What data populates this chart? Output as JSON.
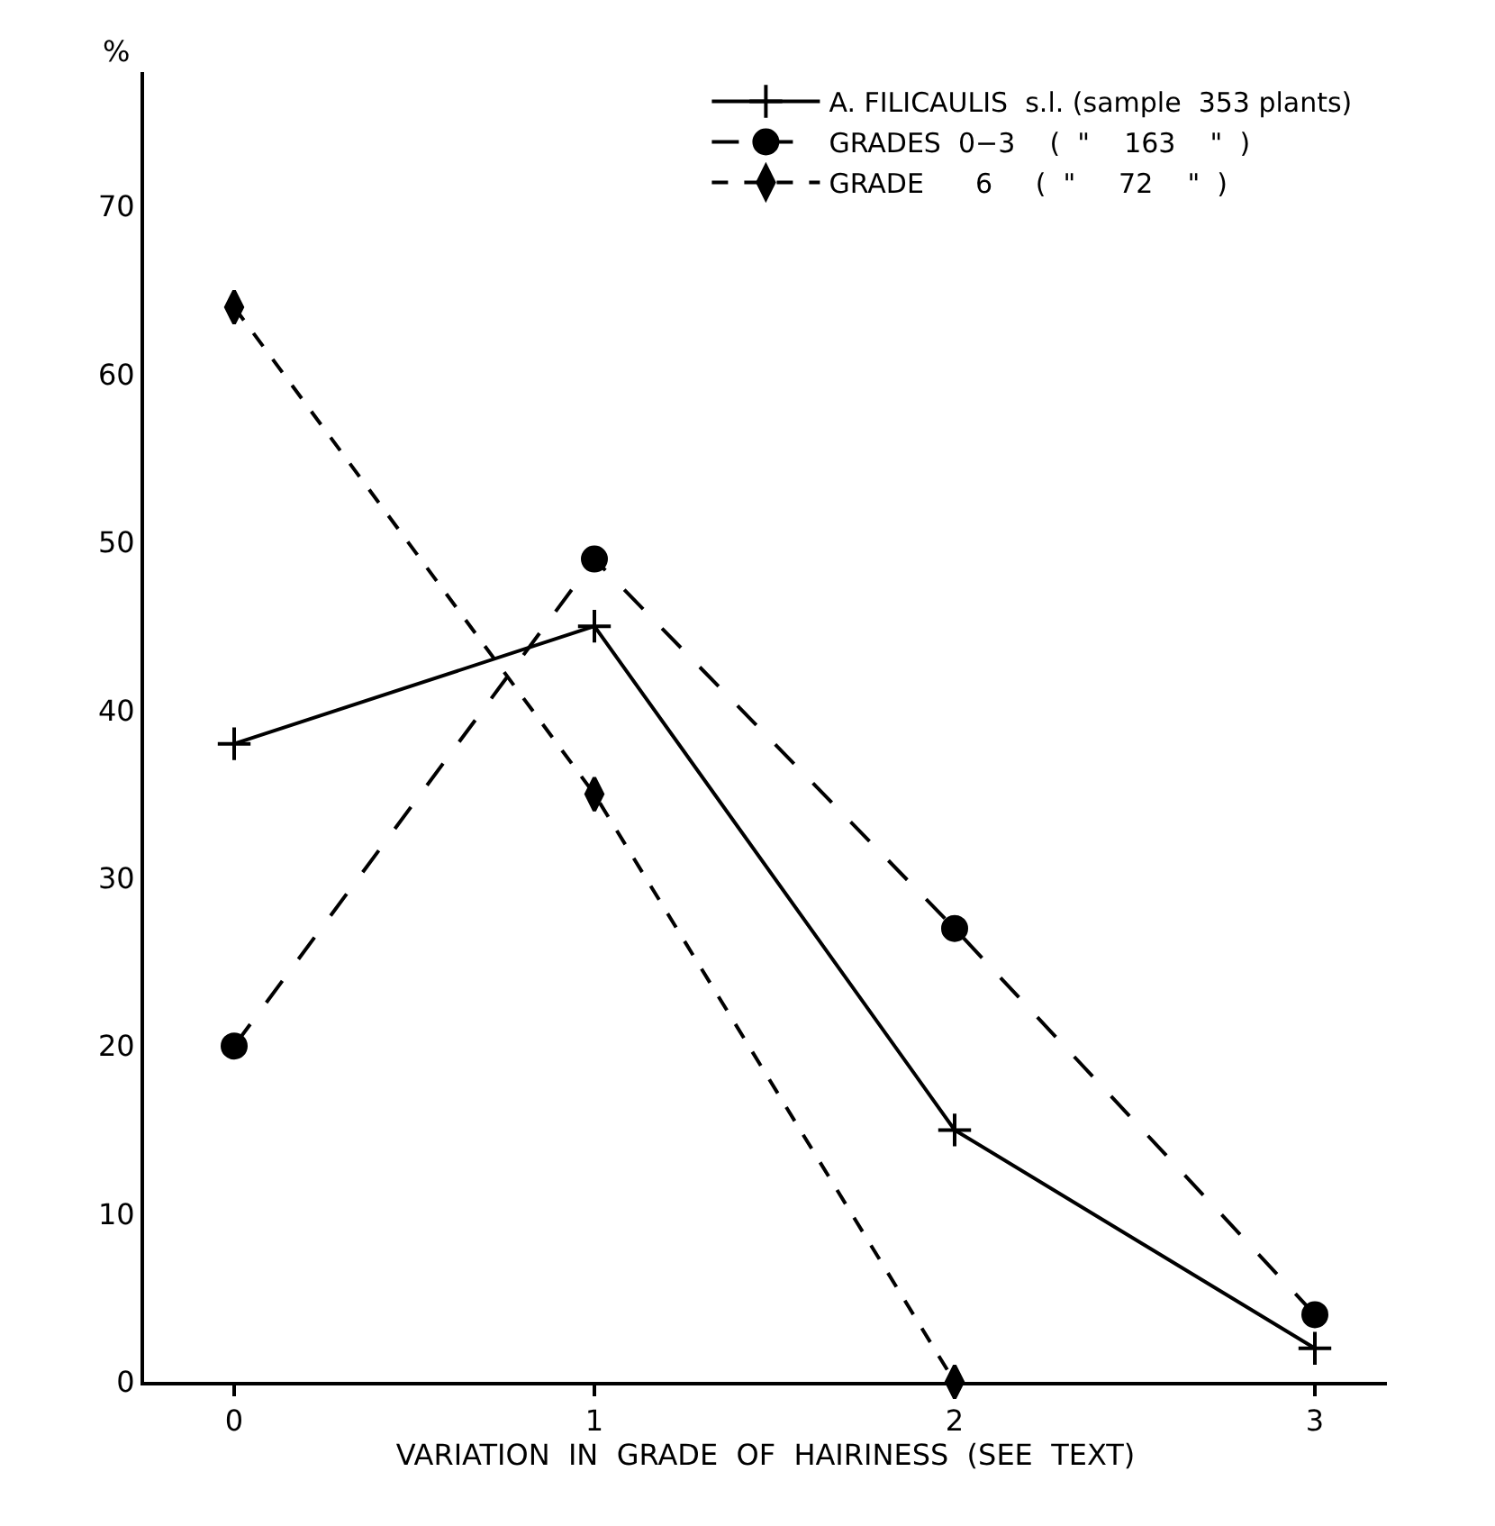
{
  "chart_data": {
    "type": "line",
    "ylabel": "%",
    "xlabel": "VARIATION  IN  GRADE  OF  HAIRINESS  (SEE  TEXT)",
    "x": [
      0,
      1,
      2,
      3
    ],
    "xlim": [
      -0.25,
      3.2
    ],
    "xticks": [
      0,
      1,
      2,
      3
    ],
    "ylim": [
      0,
      78
    ],
    "yticks": [
      0,
      10,
      20,
      30,
      40,
      50,
      60,
      70
    ],
    "legend": "top right",
    "series": [
      {
        "name": "A. FILICAULIS  s.l. (sample  353 plants)",
        "color": "#000000",
        "values": [
          38,
          45,
          15,
          2
        ],
        "marker": "cross",
        "line_style": "solid"
      },
      {
        "name": "GRADES  0−3    (  \"    163    \"  )",
        "color": "#000000",
        "values": [
          20,
          49,
          27,
          4
        ],
        "marker": "circle",
        "line_style": "dashed"
      },
      {
        "name": "GRADE      6     (  \"     72    \"  )",
        "color": "#000000",
        "values": [
          64,
          35,
          0,
          null
        ],
        "marker": "diamond",
        "line_style": "dotted"
      }
    ]
  }
}
